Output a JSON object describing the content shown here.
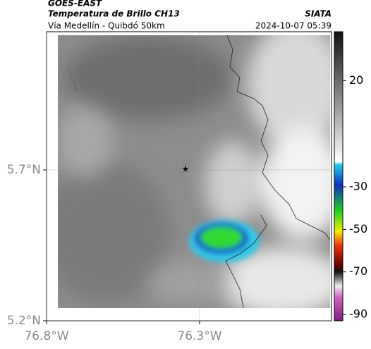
{
  "header": {
    "source": "GOES-EAST",
    "title": "Temperatura de Brillo CH13",
    "brand": "SIATA",
    "subtitle": "Vía Medellín - Quibdó 50km",
    "timestamp": "2024-10-07 05:39"
  },
  "map": {
    "xlim": [
      -76.8,
      -75.869
    ],
    "ylim": [
      5.2,
      6.158
    ],
    "xticks": [
      {
        "value": -76.8,
        "label": "76.8°W"
      },
      {
        "value": -76.3,
        "label": "76.3°W"
      }
    ],
    "yticks": [
      {
        "value": 5.2,
        "label": "5.2°N"
      },
      {
        "value": 5.7,
        "label": "5.7°N"
      }
    ]
  },
  "colorbar": {
    "lim": [
      -93,
      43
    ],
    "ticks": [
      20,
      -30,
      -50,
      -70,
      -90
    ]
  }
}
